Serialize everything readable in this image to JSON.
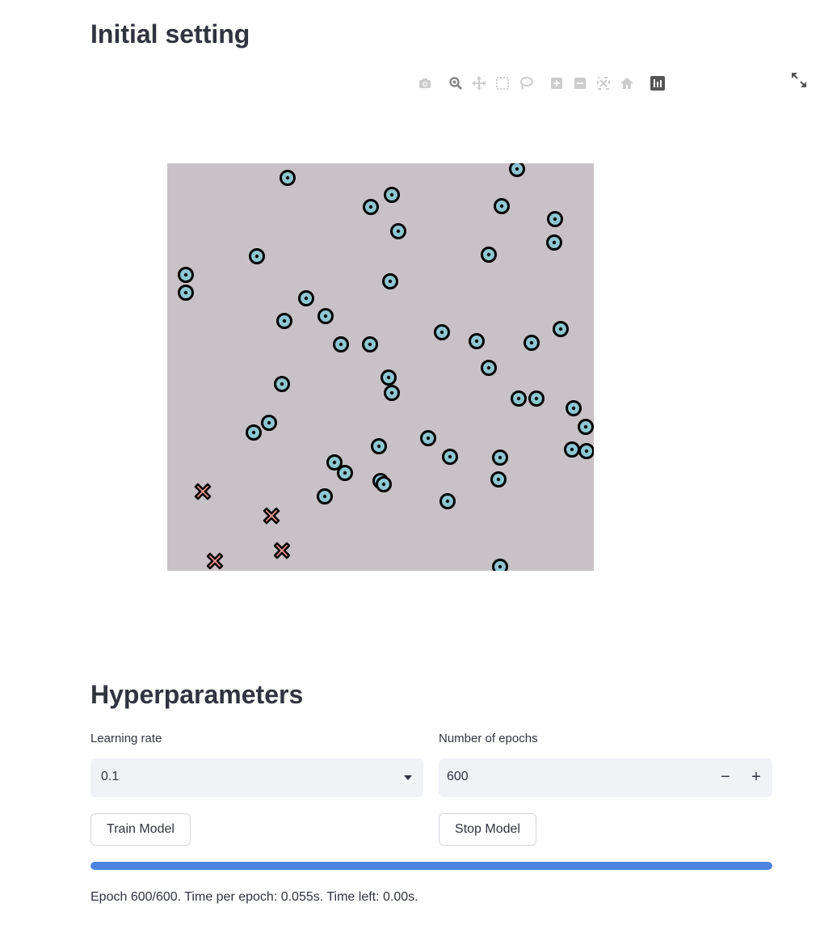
{
  "headings": {
    "initial_setting": "Initial setting",
    "hyperparameters": "Hyperparameters"
  },
  "modebar": {
    "icons": [
      "camera-icon",
      "zoom-icon",
      "pan-icon",
      "box-select-icon",
      "lasso-icon",
      "zoom-in-icon",
      "zoom-out-icon",
      "autoscale-icon",
      "reset-axes-icon",
      "plotly-logo-icon"
    ]
  },
  "chart_data": {
    "type": "scatter",
    "title": "",
    "xlabel": "",
    "ylabel": "",
    "xlim": [
      0,
      528
    ],
    "ylim": [
      0,
      504
    ],
    "grid": false,
    "background": "#c8c2c6",
    "series": [
      {
        "marker": "circle-dot",
        "color": "#8ec7d2",
        "x": [
          149,
          433,
          278,
          252,
          414,
          480,
          286,
          398,
          479,
          23,
          111,
          23,
          276,
          172,
          145,
          196,
          251,
          487,
          215,
          503,
          340,
          383,
          451,
          398,
          274,
          278,
          435,
          457,
          142,
          126,
          107,
          518,
          262,
          323,
          350,
          501,
          519,
          412,
          207,
          220,
          264,
          268,
          195,
          347,
          410,
          412
        ],
        "y": [
          486,
          497,
          465,
          450,
          451,
          435,
          420,
          391,
          406,
          366,
          389,
          344,
          358,
          337,
          309,
          315,
          280,
          299,
          280,
          201,
          295,
          284,
          282,
          251,
          239,
          220,
          213,
          213,
          231,
          183,
          171,
          178,
          154,
          164,
          141,
          150,
          148,
          140,
          134,
          121,
          111,
          107,
          92,
          86,
          113,
          5
        ]
      },
      {
        "marker": "x",
        "color": "#e8938c",
        "x": [
          44,
          129,
          59,
          142
        ],
        "y": [
          98,
          68,
          12,
          25
        ]
      }
    ]
  },
  "learning_rate": {
    "label": "Learning rate",
    "value": "0.1"
  },
  "epochs": {
    "label": "Number of epochs",
    "value": "600",
    "minus": "−",
    "plus": "+"
  },
  "buttons": {
    "train": "Train Model",
    "stop": "Stop Model"
  },
  "progress": {
    "value": 1.0
  },
  "status": "Epoch 600/600. Time per epoch: 0.055s. Time left: 0.00s."
}
